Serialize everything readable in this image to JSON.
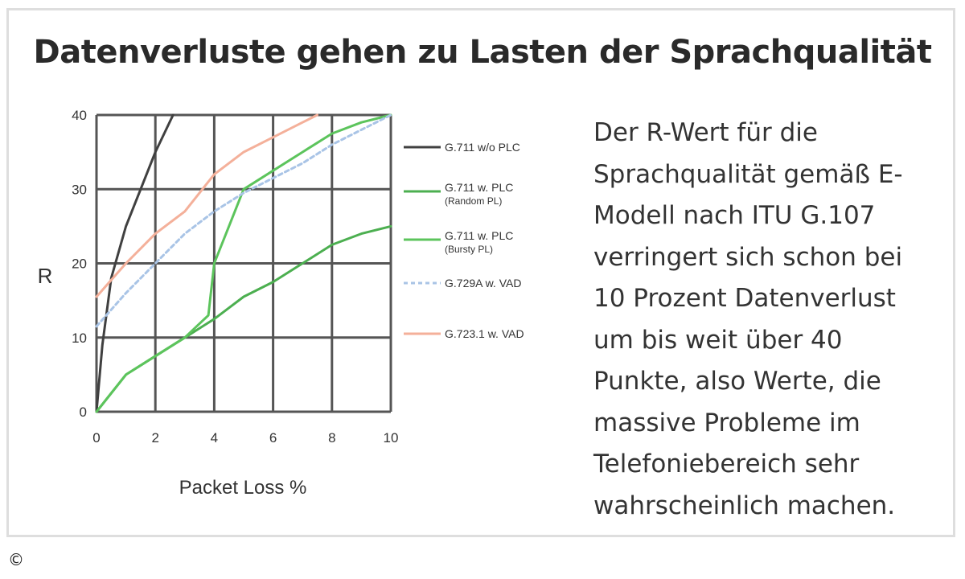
{
  "title": "Datenverluste gehen zu Lasten der Sprachqualität",
  "description": "Der R-Wert für die Sprachqualität gemäß E-Modell nach ITU G.107 verringert sich schon bei 10 Prozent Datenverlust um bis weit über 40 Punkte, also Werte, die massive Probleme im Telefoniebereich sehr wahrscheinlich machen.",
  "copyright": "©",
  "chart_data": {
    "type": "line",
    "title": "",
    "xlabel": "Packet Loss %",
    "ylabel": "R",
    "xlim": [
      0,
      10
    ],
    "ylim": [
      0,
      40
    ],
    "xticks": [
      0,
      2,
      4,
      6,
      8,
      10
    ],
    "yticks": [
      0,
      10,
      20,
      30,
      40
    ],
    "grid": true,
    "legend_position": "right",
    "series": [
      {
        "name": "G.711 w/o PLC",
        "color": "#404040",
        "points": [
          [
            0,
            0
          ],
          [
            0.2,
            9
          ],
          [
            0.5,
            18
          ],
          [
            1,
            25
          ],
          [
            1.5,
            30
          ],
          [
            2,
            35
          ],
          [
            2.6,
            40
          ]
        ]
      },
      {
        "name": "G.711 w. PLC (Random PL)",
        "color": "#4caf50",
        "points": [
          [
            0,
            0
          ],
          [
            1,
            5
          ],
          [
            2,
            7.5
          ],
          [
            3,
            10
          ],
          [
            4,
            12.5
          ],
          [
            5,
            15.5
          ],
          [
            6,
            17.5
          ],
          [
            7,
            20
          ],
          [
            8,
            22.5
          ],
          [
            9,
            24
          ],
          [
            10,
            25
          ]
        ]
      },
      {
        "name": "G.711 w. PLC (Bursty PL)",
        "color": "#5cc45c",
        "points": [
          [
            0,
            0
          ],
          [
            1,
            5
          ],
          [
            2,
            7.5
          ],
          [
            3,
            10
          ],
          [
            3.4,
            11.5
          ],
          [
            3.8,
            13
          ],
          [
            4,
            20
          ],
          [
            4.5,
            25
          ],
          [
            5,
            30
          ],
          [
            6,
            32.5
          ],
          [
            7,
            35
          ],
          [
            8,
            37.5
          ],
          [
            9,
            39
          ],
          [
            10,
            40
          ]
        ]
      },
      {
        "name": "G.729A w. VAD",
        "color": "#a9c4e6",
        "dashed": true,
        "points": [
          [
            0,
            11.5
          ],
          [
            1,
            16
          ],
          [
            2,
            20
          ],
          [
            3,
            24
          ],
          [
            4,
            27
          ],
          [
            5,
            29.5
          ],
          [
            6,
            31.5
          ],
          [
            7,
            33.5
          ],
          [
            8,
            36
          ],
          [
            9,
            38
          ],
          [
            10,
            40
          ]
        ]
      },
      {
        "name": "G.723.1 w. VAD",
        "color": "#f4b09a",
        "points": [
          [
            0,
            15.5
          ],
          [
            1,
            20
          ],
          [
            2,
            24
          ],
          [
            3,
            27
          ],
          [
            4,
            32
          ],
          [
            5,
            35
          ],
          [
            6,
            37
          ],
          [
            7,
            39
          ],
          [
            7.5,
            40
          ]
        ]
      }
    ]
  }
}
